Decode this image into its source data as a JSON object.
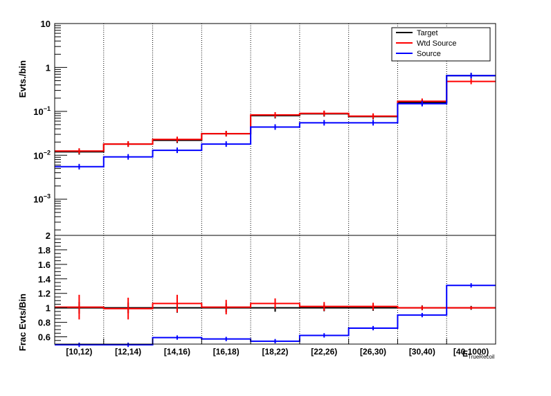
{
  "chart_data": [
    {
      "type": "line",
      "scale": "log",
      "ylabel": "Evts./bin",
      "ylim": [
        0.00015,
        10
      ],
      "yticks": [
        {
          "value": 10,
          "label": "10"
        },
        {
          "value": 1,
          "label": "1"
        },
        {
          "value": 0.1,
          "label": "10",
          "exp": "−1"
        },
        {
          "value": 0.01,
          "label": "10",
          "exp": "−2"
        },
        {
          "value": 0.001,
          "label": "10",
          "exp": "−3"
        }
      ],
      "categories": [
        "[10,12)",
        "[12,14)",
        "[14,16)",
        "[16,18)",
        "[18,22)",
        "[22,26)",
        "[26,30)",
        "[30,40)",
        "[40,1000)"
      ],
      "legend": [
        "Target",
        "Wtd Source",
        "Source"
      ],
      "legend_position": "top-right",
      "grid": "vertical dotted at bin edges",
      "series": [
        {
          "name": "Target",
          "color": "#000000",
          "values": [
            0.012,
            0.018,
            0.022,
            0.031,
            0.08,
            0.088,
            0.076,
            0.16,
            0.65
          ]
        },
        {
          "name": "Wtd Source",
          "color": "#ff0000",
          "values": [
            0.0125,
            0.018,
            0.023,
            0.031,
            0.083,
            0.09,
            0.078,
            0.17,
            0.48
          ]
        },
        {
          "name": "Source",
          "color": "#0000ff",
          "values": [
            0.0055,
            0.0092,
            0.013,
            0.018,
            0.044,
            0.055,
            0.055,
            0.15,
            0.65
          ]
        }
      ]
    },
    {
      "type": "line",
      "ylabel": "Frac Evts/Bin",
      "ylim": [
        0.5,
        2.0
      ],
      "yticks": [
        {
          "value": 0.6,
          "label": "0.6"
        },
        {
          "value": 0.8,
          "label": "0.8"
        },
        {
          "value": 1.0,
          "label": "1"
        },
        {
          "value": 1.2,
          "label": "1.2"
        },
        {
          "value": 1.4,
          "label": "1.4"
        },
        {
          "value": 1.6,
          "label": "1.6"
        },
        {
          "value": 1.8,
          "label": "1.8"
        },
        {
          "value": 2.0,
          "label": "2"
        }
      ],
      "categories": [
        "[10,12)",
        "[12,14)",
        "[14,16)",
        "[16,18)",
        "[18,22)",
        "[22,26)",
        "[26,30)",
        "[30,40)",
        "[40,1000)"
      ],
      "xlabel": "E",
      "xlabel_sub": "TrueRecoil",
      "series": [
        {
          "name": "Target",
          "color": "#000000",
          "values": [
            1,
            1,
            1,
            1,
            1,
            1,
            1,
            1,
            1
          ]
        },
        {
          "name": "Wtd Source",
          "color": "#ff0000",
          "values": [
            1.01,
            0.99,
            1.06,
            1.01,
            1.06,
            1.02,
            1.02,
            1.0,
            1.0
          ]
        },
        {
          "name": "Source",
          "color": "#0000ff",
          "values": [
            0.49,
            0.49,
            0.59,
            0.57,
            0.54,
            0.62,
            0.72,
            0.9,
            1.31
          ]
        }
      ]
    }
  ]
}
